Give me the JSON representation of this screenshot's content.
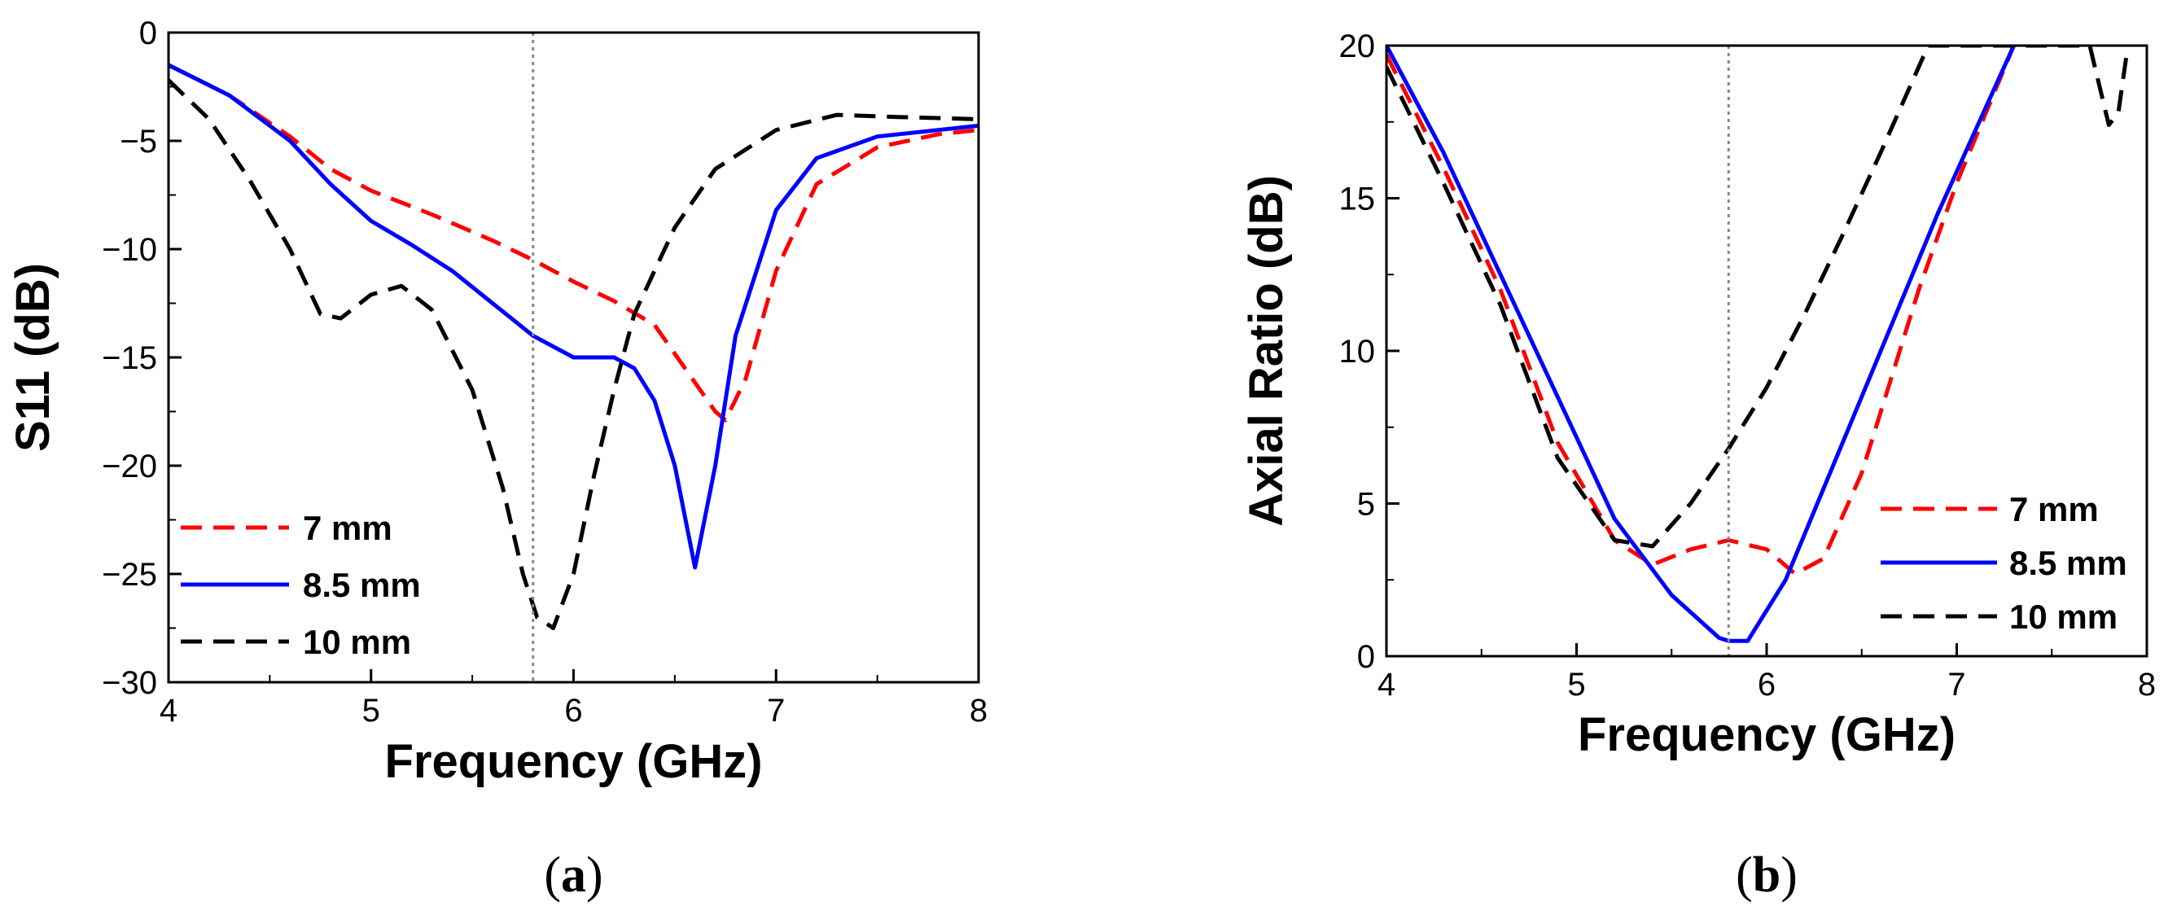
{
  "chart_data": [
    {
      "type": "line",
      "panel": "a",
      "panel_label": "a",
      "xlabel": "Frequency (GHz)",
      "ylabel": "S11 (dB)",
      "xlim": [
        4,
        8
      ],
      "ylim": [
        -30,
        0
      ],
      "xticks": [
        4,
        5,
        6,
        7,
        8
      ],
      "yticks": [
        0,
        -5,
        -10,
        -15,
        -20,
        -25,
        -30
      ],
      "ytick_labels": [
        "0",
        "−5",
        "−10",
        "−15",
        "−20",
        "−25",
        "−30"
      ],
      "reference_line_x": 5.8,
      "legend_position": "bottom-left",
      "series": [
        {
          "name": "7 mm",
          "color": "#ff0000",
          "style": "dashed",
          "x": [
            4.0,
            4.3,
            4.6,
            4.8,
            5.0,
            5.3,
            5.6,
            5.8,
            6.0,
            6.2,
            6.4,
            6.55,
            6.7,
            6.75,
            6.85,
            7.0,
            7.2,
            7.5,
            7.8,
            8.0
          ],
          "y": [
            -1.5,
            -2.9,
            -4.8,
            -6.3,
            -7.3,
            -8.4,
            -9.6,
            -10.5,
            -11.5,
            -12.4,
            -13.5,
            -15.5,
            -17.5,
            -17.9,
            -16.0,
            -11.0,
            -7.0,
            -5.3,
            -4.7,
            -4.5
          ]
        },
        {
          "name": "8.5 mm",
          "color": "#0000ff",
          "style": "solid",
          "x": [
            4.0,
            4.3,
            4.6,
            4.8,
            5.0,
            5.2,
            5.4,
            5.6,
            5.8,
            6.0,
            6.2,
            6.3,
            6.4,
            6.5,
            6.6,
            6.7,
            6.8,
            7.0,
            7.2,
            7.5,
            7.8,
            8.0
          ],
          "y": [
            -1.5,
            -2.9,
            -5.0,
            -7.0,
            -8.7,
            -9.8,
            -11.0,
            -12.5,
            -14.0,
            -15.0,
            -15.0,
            -15.5,
            -17.0,
            -20.0,
            -24.7,
            -20.0,
            -14.0,
            -8.2,
            -5.8,
            -4.8,
            -4.5,
            -4.3
          ]
        },
        {
          "name": "10 mm",
          "color": "#000000",
          "style": "dashed",
          "x": [
            4.0,
            4.2,
            4.4,
            4.6,
            4.75,
            4.85,
            5.0,
            5.15,
            5.3,
            5.5,
            5.65,
            5.75,
            5.82,
            5.9,
            6.0,
            6.1,
            6.2,
            6.3,
            6.5,
            6.7,
            7.0,
            7.3,
            7.6,
            8.0
          ],
          "y": [
            -2.2,
            -4.0,
            -6.8,
            -10.0,
            -13.0,
            -13.2,
            -12.1,
            -11.7,
            -12.8,
            -16.5,
            -21.0,
            -25.0,
            -27.0,
            -27.5,
            -25.0,
            -20.5,
            -16.5,
            -13.0,
            -9.0,
            -6.3,
            -4.5,
            -3.8,
            -3.9,
            -4.0
          ]
        }
      ]
    },
    {
      "type": "line",
      "panel": "b",
      "panel_label": "b",
      "xlabel": "Frequency (GHz)",
      "ylabel": "Axial Ratio (dB)",
      "xlim": [
        4,
        8
      ],
      "ylim": [
        0,
        20
      ],
      "xticks": [
        4,
        5,
        6,
        7,
        8
      ],
      "yticks": [
        0,
        5,
        10,
        15,
        20
      ],
      "ytick_labels": [
        "0",
        "5",
        "10",
        "15",
        "20"
      ],
      "reference_line_x": 5.8,
      "legend_position": "bottom-right",
      "series": [
        {
          "name": "7 mm",
          "color": "#ff0000",
          "style": "dashed",
          "x": [
            4.0,
            4.3,
            4.6,
            4.9,
            5.2,
            5.4,
            5.6,
            5.8,
            6.0,
            6.15,
            6.3,
            6.5,
            6.8,
            7.0,
            7.3
          ],
          "y": [
            19.7,
            16.0,
            12.0,
            7.0,
            3.8,
            3.0,
            3.5,
            3.8,
            3.5,
            2.7,
            3.2,
            6.0,
            12.0,
            15.5,
            20.0
          ]
        },
        {
          "name": "8.5 mm",
          "color": "#0000ff",
          "style": "solid",
          "x": [
            4.0,
            4.3,
            4.6,
            4.9,
            5.2,
            5.5,
            5.75,
            5.8,
            5.9,
            6.1,
            6.5,
            6.9,
            7.3
          ],
          "y": [
            20.0,
            16.5,
            12.5,
            8.5,
            4.5,
            2.0,
            0.6,
            0.5,
            0.5,
            2.5,
            8.5,
            14.5,
            20.0
          ]
        },
        {
          "name": "10 mm",
          "color": "#000000",
          "style": "dashed",
          "x": [
            4.0,
            4.3,
            4.6,
            4.9,
            5.2,
            5.4,
            5.6,
            5.8,
            6.0,
            6.2,
            6.4,
            6.6,
            6.85,
            7.7,
            7.8,
            7.85,
            7.9
          ],
          "y": [
            19.3,
            15.5,
            11.5,
            6.5,
            3.8,
            3.6,
            5.0,
            6.8,
            8.8,
            11.2,
            13.8,
            16.5,
            20.0,
            20.0,
            17.4,
            17.8,
            20.0
          ]
        }
      ]
    }
  ]
}
